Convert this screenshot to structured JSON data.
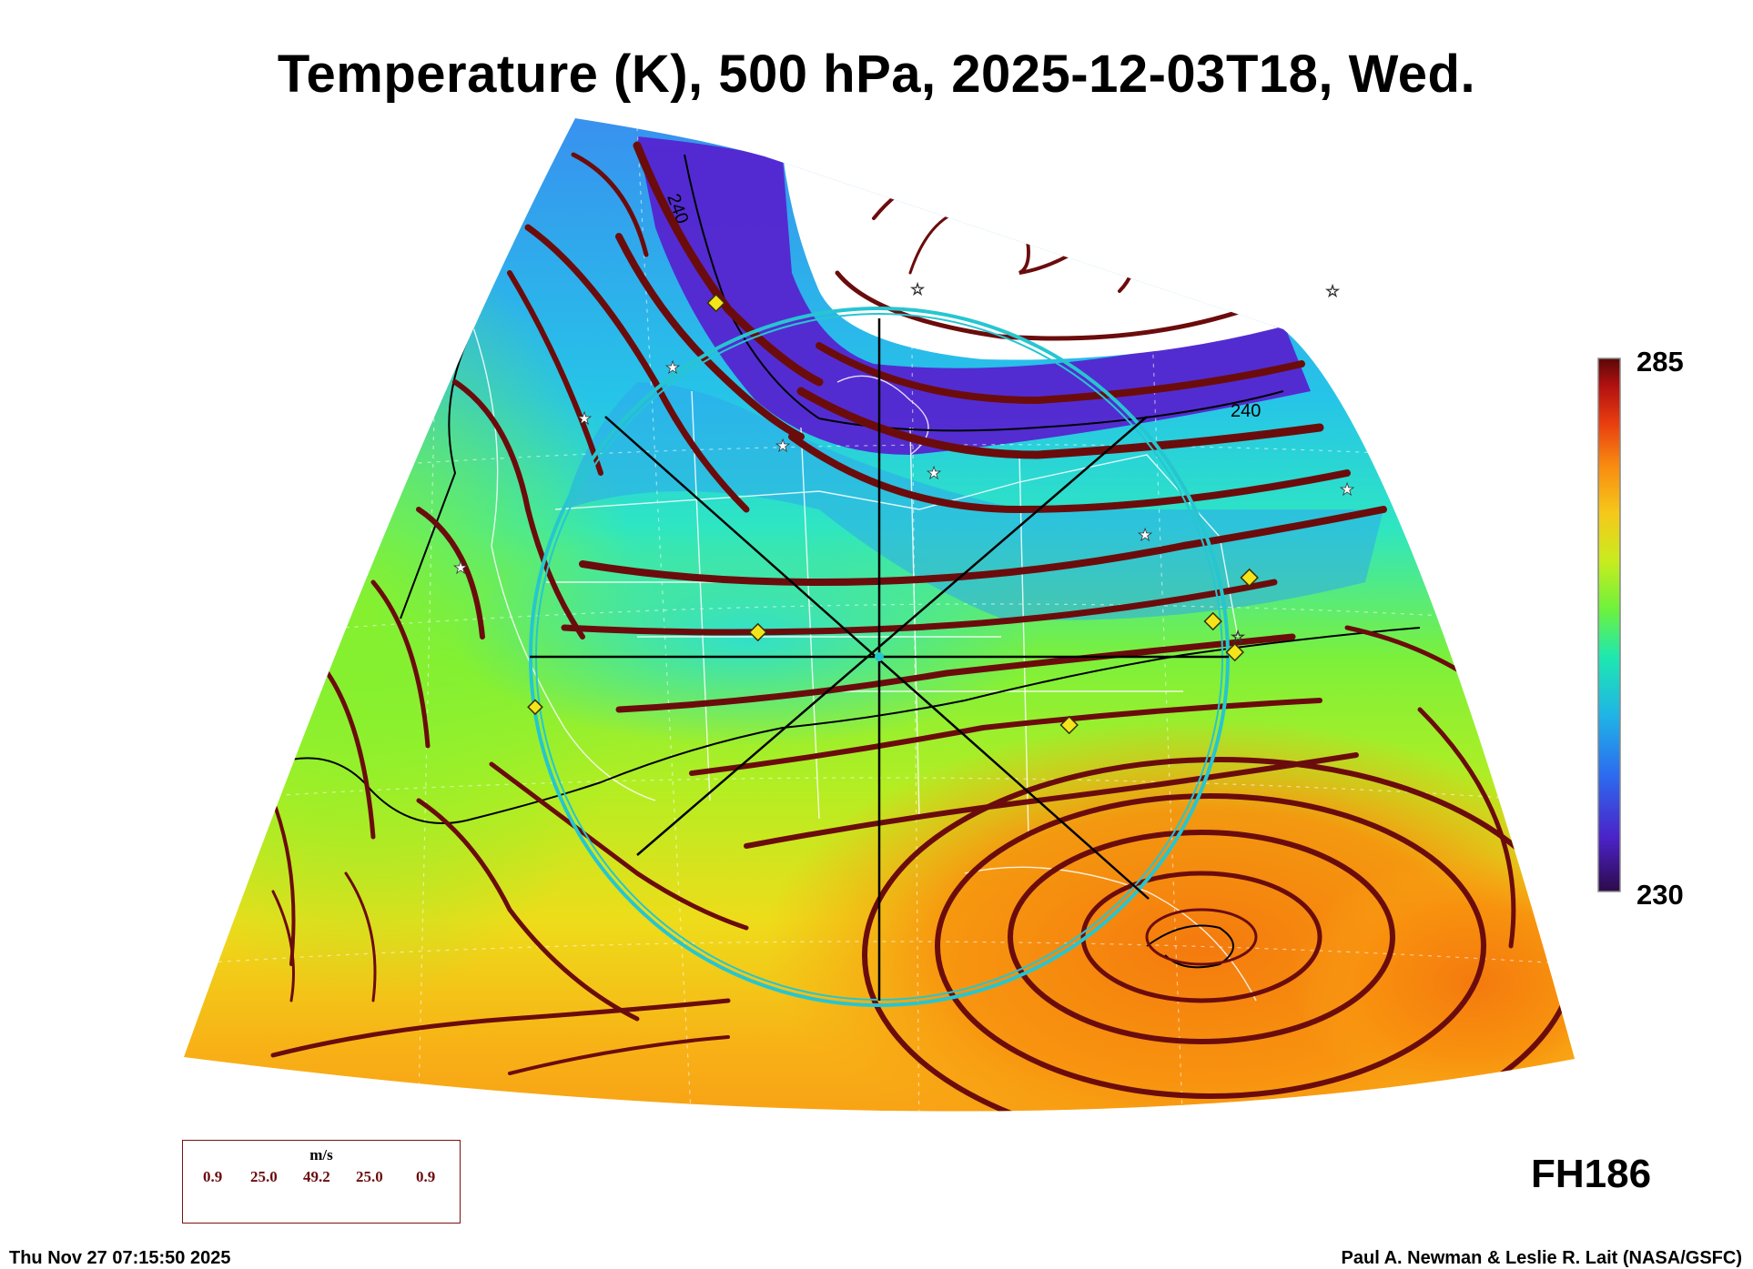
{
  "title": "Temperature (K), 500 hPa, 2025-12-03T18, Wed.",
  "colorbar": {
    "max": "285",
    "min": "230",
    "stops": [
      "#2d0b4a",
      "#4b22c8",
      "#2c6cf0",
      "#1fb4e6",
      "#1ee8b0",
      "#6ef23c",
      "#c8ec1e",
      "#f6c81a",
      "#f88a10",
      "#e83c10",
      "#b01010",
      "#5a0808"
    ]
  },
  "contour_labels": [
    "240",
    "240"
  ],
  "forecast_hour": "FH186",
  "wind_legend": {
    "unit": "m/s",
    "values": [
      "0.9",
      "25.0",
      "49.2",
      "25.0",
      "0.9"
    ]
  },
  "timestamp": "Thu Nov 27 07:15:50 2025",
  "credits": "Paul A. Newman & Leslie R. Lait (NASA/GSFC)",
  "colors": {
    "streamline": "#6b0c0c",
    "marker": "#f4e41c",
    "ring": "#26c6d0"
  }
}
